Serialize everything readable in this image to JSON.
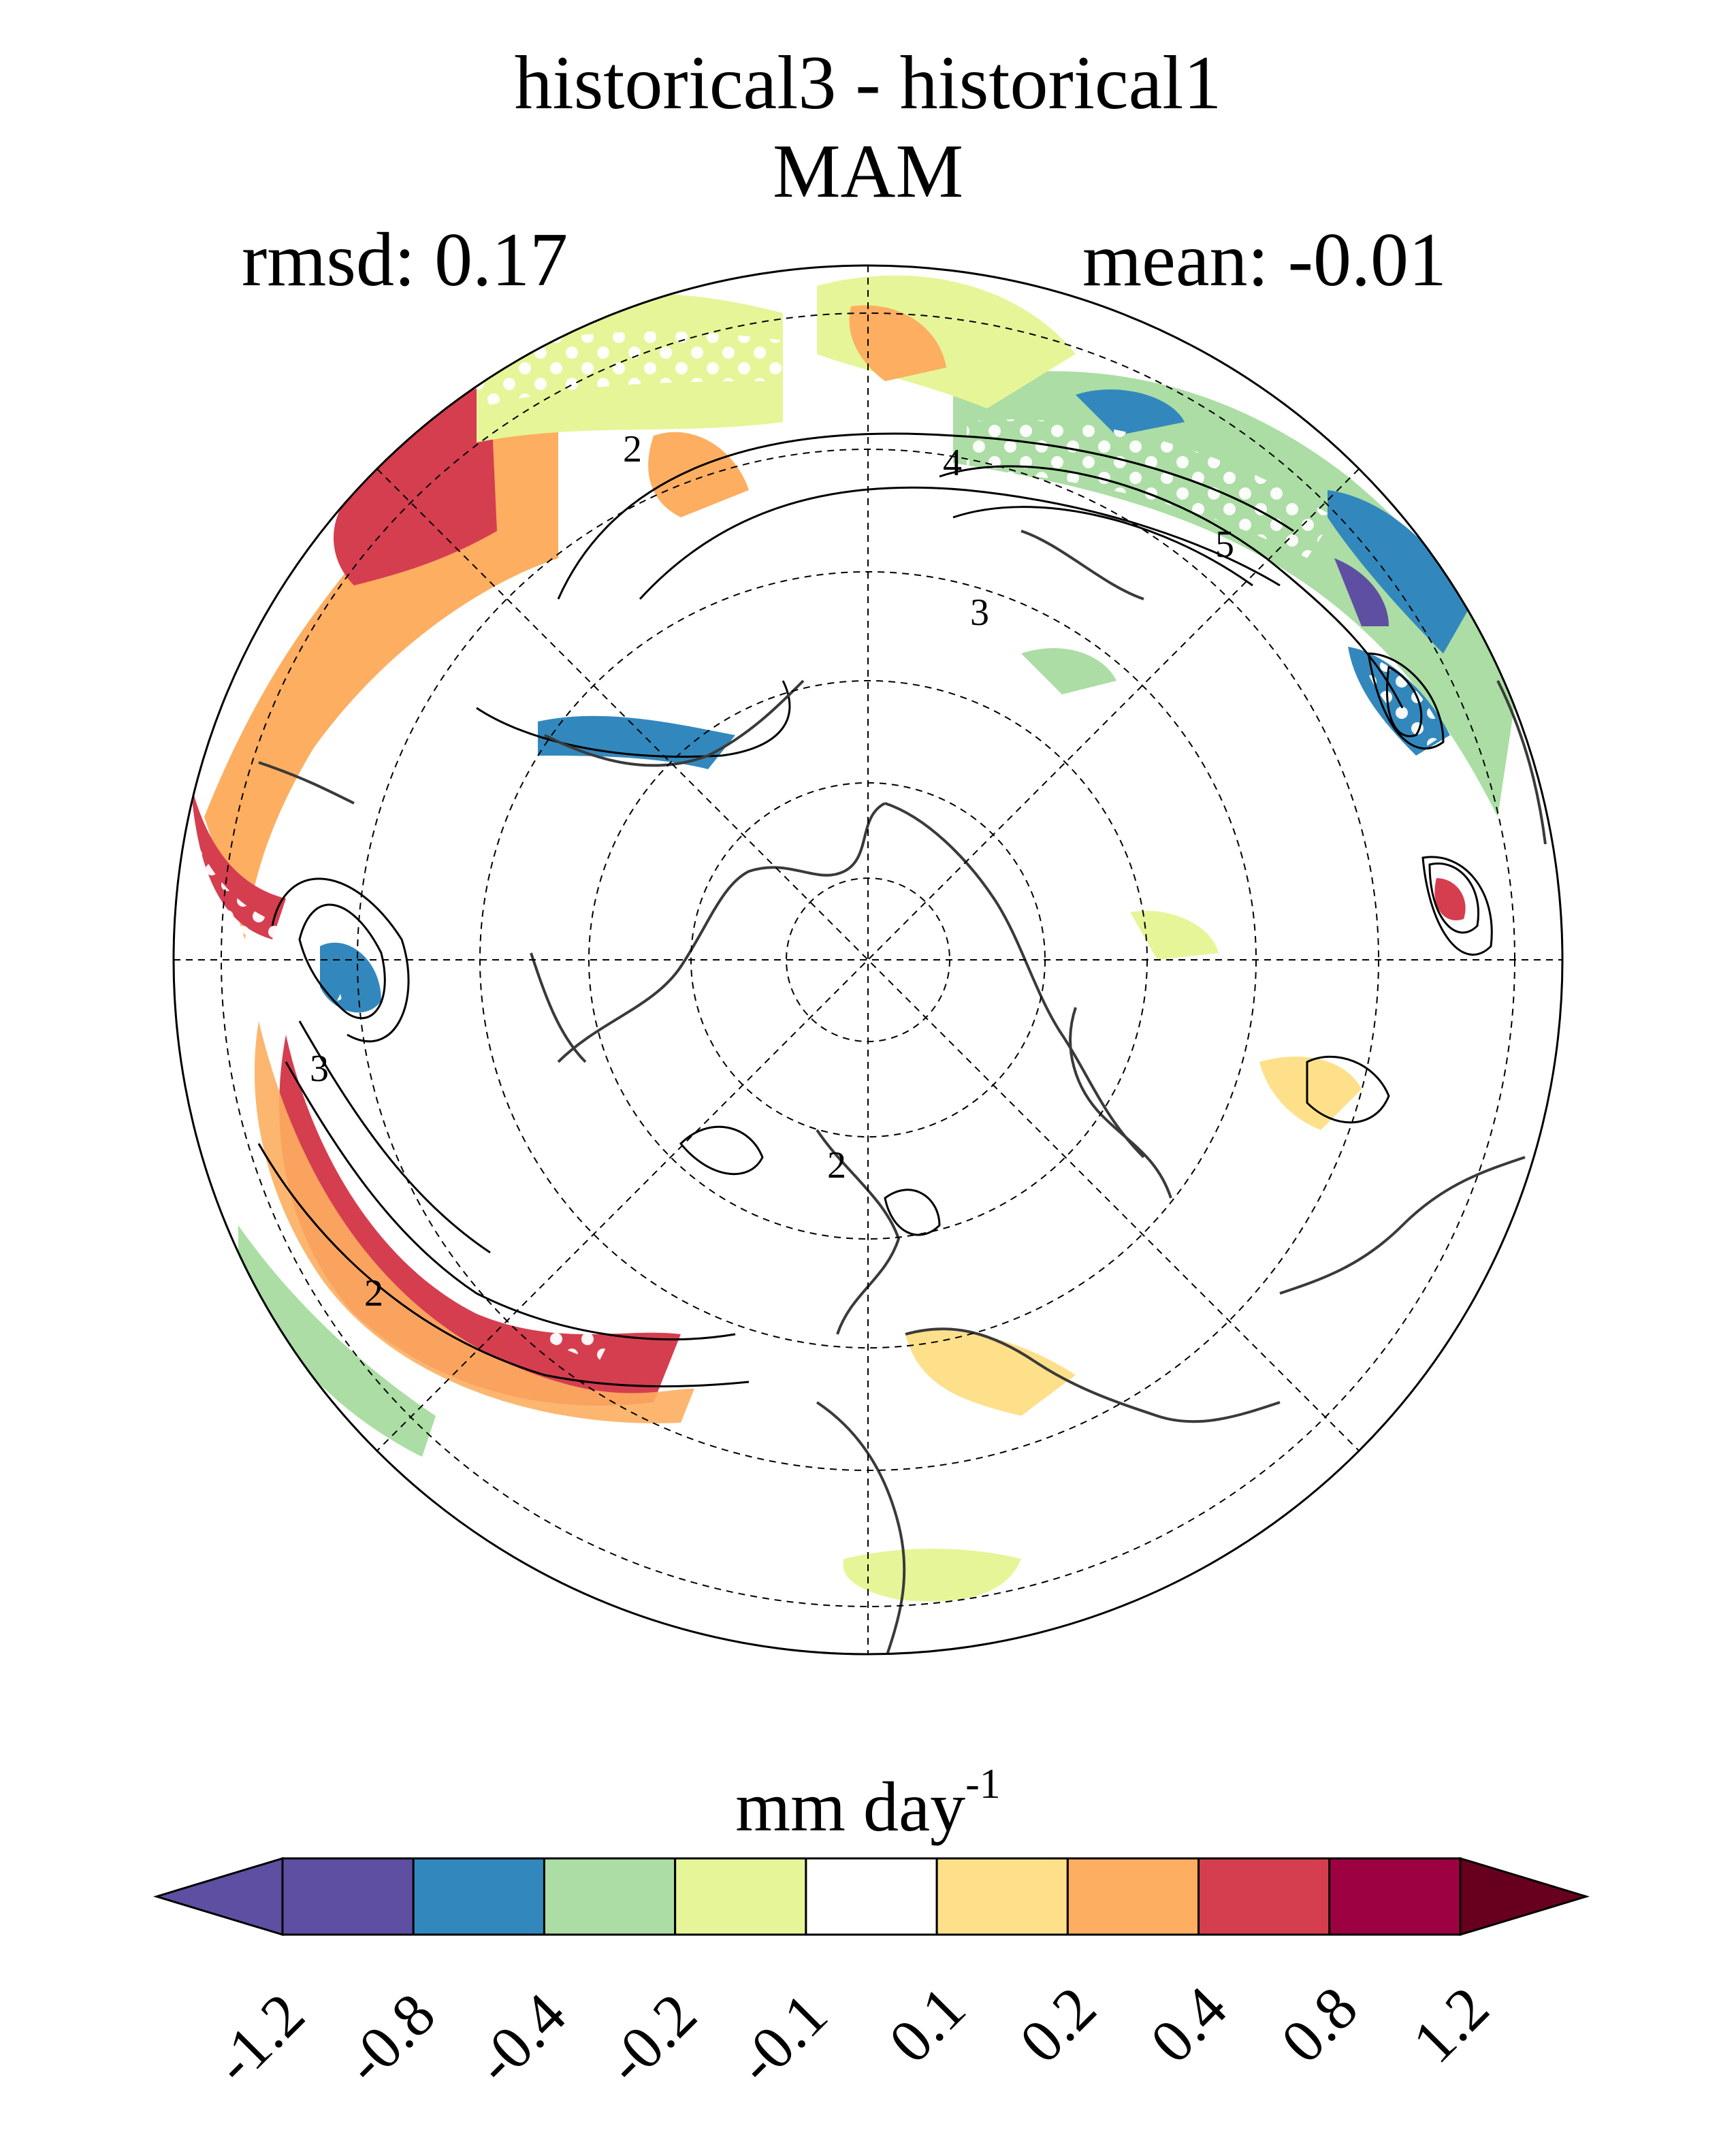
{
  "title": {
    "line1": "historical3 - historical1",
    "line2": "MAM",
    "rmsd": "rmsd: 0.17",
    "mean": "mean: -0.01"
  },
  "map": {
    "projection": "north polar stereographic",
    "contour_labels": [
      "2",
      "4",
      "5",
      "3",
      "3",
      "2",
      "2"
    ]
  },
  "colorbar": {
    "units_base": "mm day",
    "units_exp": "-1",
    "ticks": [
      "-1.2",
      "-0.8",
      "-0.4",
      "-0.2",
      "-0.1",
      "0.1",
      "0.2",
      "0.4",
      "0.8",
      "1.2"
    ],
    "colors": [
      "#5e4fa2",
      "#5e4fa2",
      "#3288bd",
      "#abdda4",
      "#e6f598",
      "#ffffff",
      "#fee08b",
      "#fdae61",
      "#d53e4f",
      "#9e0142",
      "#67001f"
    ]
  }
}
